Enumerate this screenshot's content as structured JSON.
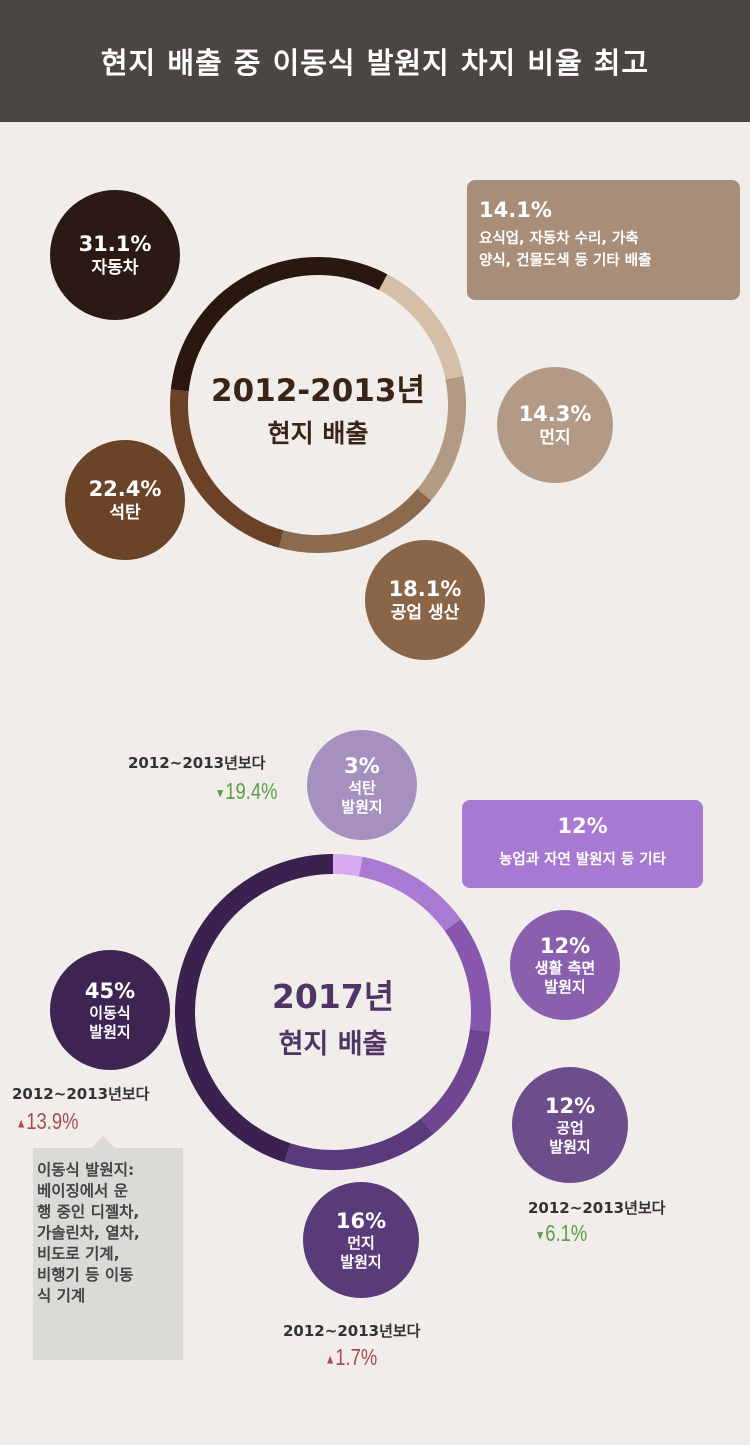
{
  "title": "현지 배출 중 이동식 발원지 차지 비율 최고",
  "chart_data": [
    {
      "type": "pie",
      "title": "2012-2013년 현지 배출",
      "title_line1": "2012-2013년",
      "title_line2": "현지 배출",
      "slices": [
        {
          "label": "자동차",
          "pct_label": "31.1%",
          "value": 31.1,
          "color": "#2a1810"
        },
        {
          "label": "요식업, 자동차 수리, 가축 양식, 건물도색 등 기타 배출",
          "label_line1": "요식업, 자동차 수리, 가축",
          "label_line2": "양식, 건물도색 등 기타 배출",
          "pct_label": "14.1%",
          "value": 14.1,
          "color": "#d5c0a7"
        },
        {
          "label": "먼지",
          "pct_label": "14.3%",
          "value": 14.3,
          "color": "#b39a82"
        },
        {
          "label": "공업 생산",
          "pct_label": "18.1%",
          "value": 18.1,
          "color": "#8c6a4e"
        },
        {
          "label": "석탄",
          "pct_label": "22.4%",
          "value": 22.4,
          "color": "#6b4228"
        }
      ]
    },
    {
      "type": "pie",
      "title": "2017년 현지 배출",
      "title_line1": "2017년",
      "title_line2": "현지 배출",
      "slices": [
        {
          "label": "석탄 발원지",
          "l1": "석탄",
          "l2": "발원지",
          "pct_label": "3%",
          "value": 3,
          "color": "#d8aaf0",
          "change_prefix": "2012~2013년보다",
          "change": "19.4%",
          "direction": "down"
        },
        {
          "label": "농업과 자연 발원지 등 기타",
          "pct_label": "12%",
          "value": 12,
          "color": "#a97ad4"
        },
        {
          "label": "생활 측면 발원지",
          "l1": "생활 측면",
          "l2": "발원지",
          "pct_label": "12%",
          "value": 12,
          "color": "#8757b0"
        },
        {
          "label": "공업 발원지",
          "l1": "공업",
          "l2": "발원지",
          "pct_label": "12%",
          "value": 12,
          "color": "#6f4691",
          "change_prefix": "2012~2013년보다",
          "change": "6.1%",
          "direction": "down"
        },
        {
          "label": "먼지 발원지",
          "l1": "먼지",
          "l2": "발원지",
          "pct_label": "16%",
          "value": 16,
          "color": "#5a3a7c",
          "change_prefix": "2012~2013년보다",
          "change": "1.7%",
          "direction": "up"
        },
        {
          "label": "이동식 발원지",
          "l1": "이동식",
          "l2": "발원지",
          "pct_label": "45%",
          "value": 45,
          "color": "#3a2150",
          "change_prefix": "2012~2013년보다",
          "change": "13.9%",
          "direction": "up"
        }
      ]
    }
  ],
  "note": {
    "lines": [
      "이동식 발원지:",
      "베이징에서 운",
      "행 중인 디젤차,",
      "가솔린차, 열차,",
      "비도로 기계,",
      "비행기 등 이동",
      "식 기계"
    ]
  },
  "colors": {
    "up": "#a84a56",
    "down": "#5aa04a"
  },
  "symbols": {
    "up": "▲",
    "down": "▼"
  }
}
